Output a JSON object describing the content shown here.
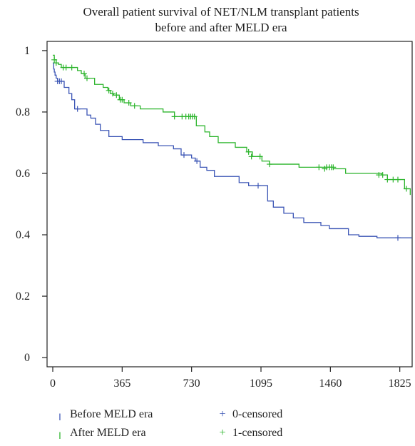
{
  "chart_data": {
    "type": "line",
    "title_lines": [
      "Overall patient survival of NET/NLM transplant patients",
      "before and after MELD era"
    ],
    "xlabel": "",
    "ylabel": "",
    "x_ticks": [
      "0",
      "365",
      "730",
      "1095",
      "1460",
      "1825"
    ],
    "x_tick_values": [
      0,
      365,
      730,
      1095,
      1460,
      1825
    ],
    "y_ticks": [
      "0",
      "0.2",
      "0.4",
      "0.6",
      "0.8",
      "1"
    ],
    "y_tick_values": [
      0,
      0.2,
      0.4,
      0.6,
      0.8,
      1
    ],
    "xlim": [
      -30,
      1890
    ],
    "ylim": [
      -0.03,
      1.03
    ],
    "grid": false,
    "legend": [
      {
        "label": "Before MELD era",
        "glyph": "╷",
        "color": "#3b55b5"
      },
      {
        "label": "0-censored",
        "glyph": "+",
        "color": "#3b55b5"
      },
      {
        "label": "After MELD era",
        "glyph": "╷",
        "color": "#2db52d"
      },
      {
        "label": "1-censored",
        "glyph": "+",
        "color": "#2db52d"
      }
    ],
    "series": [
      {
        "name": "Before MELD era",
        "color": "#3b55b5",
        "steps": [
          [
            0,
            0.96
          ],
          [
            5,
            0.94
          ],
          [
            8,
            0.93
          ],
          [
            12,
            0.92
          ],
          [
            18,
            0.91
          ],
          [
            25,
            0.9
          ],
          [
            60,
            0.88
          ],
          [
            85,
            0.86
          ],
          [
            100,
            0.84
          ],
          [
            115,
            0.81
          ],
          [
            180,
            0.79
          ],
          [
            200,
            0.78
          ],
          [
            225,
            0.76
          ],
          [
            250,
            0.74
          ],
          [
            295,
            0.72
          ],
          [
            365,
            0.71
          ],
          [
            475,
            0.7
          ],
          [
            555,
            0.69
          ],
          [
            635,
            0.68
          ],
          [
            675,
            0.66
          ],
          [
            730,
            0.65
          ],
          [
            750,
            0.64
          ],
          [
            775,
            0.62
          ],
          [
            810,
            0.61
          ],
          [
            850,
            0.59
          ],
          [
            980,
            0.57
          ],
          [
            1030,
            0.56
          ],
          [
            1130,
            0.51
          ],
          [
            1160,
            0.49
          ],
          [
            1215,
            0.47
          ],
          [
            1265,
            0.455
          ],
          [
            1320,
            0.44
          ],
          [
            1410,
            0.43
          ],
          [
            1455,
            0.42
          ],
          [
            1555,
            0.4
          ],
          [
            1610,
            0.395
          ],
          [
            1705,
            0.39
          ],
          [
            1890,
            0.39
          ]
        ],
        "censored": [
          [
            25,
            0.9
          ],
          [
            35,
            0.9
          ],
          [
            45,
            0.9
          ],
          [
            130,
            0.81
          ],
          [
            690,
            0.66
          ],
          [
            758,
            0.64
          ],
          [
            1080,
            0.56
          ],
          [
            1815,
            0.39
          ]
        ]
      },
      {
        "name": "After MELD era",
        "color": "#2db52d",
        "steps": [
          [
            0,
            0.985
          ],
          [
            8,
            0.97
          ],
          [
            18,
            0.96
          ],
          [
            30,
            0.955
          ],
          [
            45,
            0.945
          ],
          [
            130,
            0.935
          ],
          [
            150,
            0.925
          ],
          [
            170,
            0.91
          ],
          [
            220,
            0.89
          ],
          [
            265,
            0.88
          ],
          [
            290,
            0.87
          ],
          [
            305,
            0.86
          ],
          [
            320,
            0.855
          ],
          [
            350,
            0.84
          ],
          [
            375,
            0.83
          ],
          [
            410,
            0.82
          ],
          [
            460,
            0.81
          ],
          [
            580,
            0.8
          ],
          [
            640,
            0.785
          ],
          [
            755,
            0.755
          ],
          [
            800,
            0.735
          ],
          [
            825,
            0.72
          ],
          [
            870,
            0.7
          ],
          [
            960,
            0.685
          ],
          [
            1020,
            0.67
          ],
          [
            1050,
            0.655
          ],
          [
            1100,
            0.64
          ],
          [
            1140,
            0.63
          ],
          [
            1295,
            0.62
          ],
          [
            1475,
            0.615
          ],
          [
            1540,
            0.6
          ],
          [
            1730,
            0.595
          ],
          [
            1760,
            0.58
          ],
          [
            1850,
            0.55
          ],
          [
            1880,
            0.53
          ]
        ],
        "censored": [
          [
            8,
            0.97
          ],
          [
            18,
            0.96
          ],
          [
            55,
            0.945
          ],
          [
            70,
            0.945
          ],
          [
            100,
            0.945
          ],
          [
            165,
            0.925
          ],
          [
            180,
            0.91
          ],
          [
            295,
            0.87
          ],
          [
            315,
            0.86
          ],
          [
            335,
            0.855
          ],
          [
            355,
            0.84
          ],
          [
            365,
            0.84
          ],
          [
            400,
            0.83
          ],
          [
            430,
            0.82
          ],
          [
            640,
            0.785
          ],
          [
            680,
            0.785
          ],
          [
            700,
            0.785
          ],
          [
            715,
            0.785
          ],
          [
            725,
            0.785
          ],
          [
            735,
            0.785
          ],
          [
            745,
            0.785
          ],
          [
            1030,
            0.67
          ],
          [
            1045,
            0.655
          ],
          [
            1090,
            0.655
          ],
          [
            1140,
            0.63
          ],
          [
            1400,
            0.62
          ],
          [
            1430,
            0.615
          ],
          [
            1440,
            0.62
          ],
          [
            1455,
            0.62
          ],
          [
            1465,
            0.62
          ],
          [
            1475,
            0.62
          ],
          [
            1715,
            0.595
          ],
          [
            1735,
            0.595
          ],
          [
            1760,
            0.58
          ],
          [
            1790,
            0.58
          ],
          [
            1815,
            0.58
          ],
          [
            1860,
            0.55
          ]
        ]
      }
    ]
  }
}
